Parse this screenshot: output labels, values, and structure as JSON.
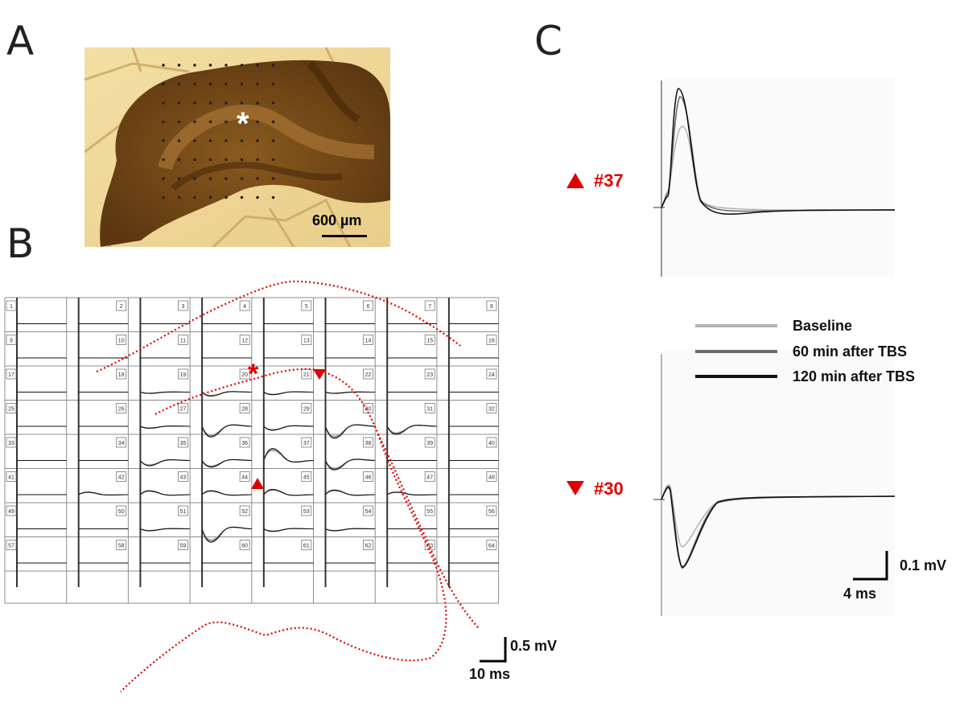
{
  "panels": {
    "a": "A",
    "b": "B",
    "c": "C"
  },
  "panel_a": {
    "asterisk": "*",
    "scale_label": "600 µm"
  },
  "panel_b": {
    "electrode_numbers": [
      "1",
      "2",
      "3",
      "4",
      "5",
      "6",
      "7",
      "8",
      "9",
      "10",
      "11",
      "12",
      "13",
      "14",
      "15",
      "16",
      "17",
      "18",
      "19",
      "20",
      "21",
      "22",
      "23",
      "24",
      "25",
      "26",
      "27",
      "28",
      "29",
      "30",
      "31",
      "32",
      "33",
      "34",
      "35",
      "36",
      "37",
      "38",
      "39",
      "40",
      "41",
      "42",
      "43",
      "44",
      "45",
      "46",
      "47",
      "48",
      "49",
      "50",
      "51",
      "52",
      "53",
      "54",
      "55",
      "56",
      "57",
      "58",
      "59",
      "60",
      "61",
      "62",
      "63",
      "64"
    ],
    "scale_voltage": "0.5 mV",
    "scale_time": "10 ms",
    "asterisk": "*"
  },
  "panel_c": {
    "trace_top_label": "#37",
    "trace_bottom_label": "#30",
    "legend": [
      {
        "label": "Baseline",
        "color": "#b4b4b4"
      },
      {
        "label": "60 min after TBS",
        "color": "#6e6e6e"
      },
      {
        "label": "120 min after TBS",
        "color": "#111111"
      }
    ],
    "scale_voltage": "0.1 mV",
    "scale_time": "4 ms"
  },
  "colors": {
    "marker_red": "#e00000",
    "grid": "#808080"
  }
}
